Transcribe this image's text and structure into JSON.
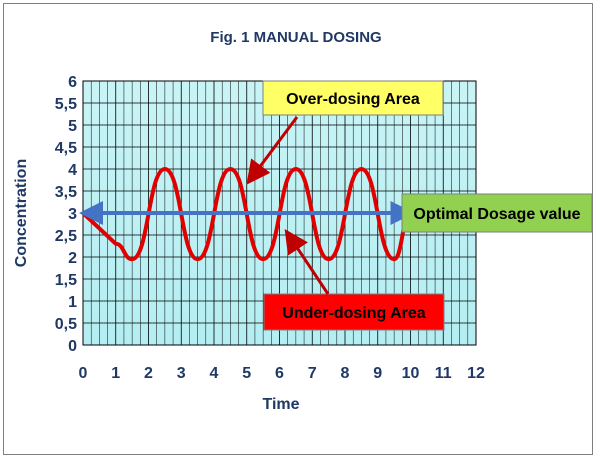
{
  "chart_data": {
    "type": "line",
    "title": "Fig. 1 MANUAL  DOSING",
    "xlabel": "Time",
    "ylabel": "Concentration",
    "xlim": [
      0,
      12
    ],
    "ylim": [
      0,
      6
    ],
    "x_ticks": [
      "0",
      "1",
      "2",
      "3",
      "4",
      "5",
      "6",
      "7",
      "8",
      "9",
      "10",
      "11",
      "12"
    ],
    "y_ticks": [
      "0",
      "0,5",
      "1",
      "1,5",
      "2",
      "2,5",
      "3",
      "3,5",
      "4",
      "4,5",
      "5",
      "5,5",
      "6"
    ],
    "grid": true,
    "series": [
      {
        "color": "#e00000",
        "x": [
          0,
          1.0,
          1.5,
          2.5,
          3.5,
          4.5,
          5.5,
          6.5,
          7.5,
          8.5,
          9.5,
          10.0
        ],
        "y": [
          3.0,
          2.3,
          1.95,
          4.0,
          1.95,
          4.0,
          1.95,
          4.0,
          1.95,
          4.0,
          1.95,
          3.0
        ]
      },
      {
        "color": "#4472c4",
        "x": [
          0,
          10
        ],
        "y": [
          3.0,
          3.0
        ]
      }
    ],
    "annotations": [
      {
        "text": "Over-dosing Area",
        "bg": "#ffff66",
        "point_to": [
          4.6,
          3.6
        ]
      },
      {
        "text": "Optimal Dosage value",
        "bg": "#92d050"
      },
      {
        "text": "Under-dosing Area",
        "bg": "#ff0000",
        "point_from": [
          6.2,
          2.6
        ]
      }
    ]
  }
}
